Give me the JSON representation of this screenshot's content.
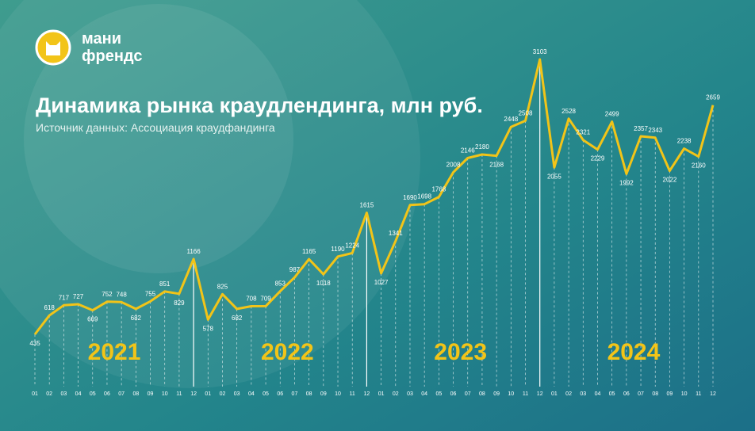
{
  "logo": {
    "line1": "мани",
    "line2": "френдс"
  },
  "chart_data": {
    "type": "line",
    "title": "Динамика рынка краудлендинга, млн руб.",
    "subtitle": "Источник данных: Ассоциация краудфандинга",
    "categories": [
      "01",
      "02",
      "03",
      "04",
      "05",
      "06",
      "07",
      "08",
      "09",
      "10",
      "11",
      "12",
      "01",
      "02",
      "03",
      "04",
      "05",
      "06",
      "07",
      "08",
      "09",
      "10",
      "11",
      "12",
      "01",
      "02",
      "03",
      "04",
      "05",
      "06",
      "07",
      "08",
      "09",
      "10",
      "11",
      "12",
      "01",
      "02",
      "03",
      "04",
      "05",
      "06",
      "07",
      "08",
      "09",
      "10",
      "11",
      "12"
    ],
    "values": [
      435,
      618,
      717,
      727,
      669,
      752,
      748,
      682,
      755,
      851,
      829,
      1166,
      578,
      825,
      682,
      708,
      709,
      853,
      987,
      1165,
      1018,
      1190,
      1224,
      1615,
      1027,
      1341,
      1690,
      1698,
      1768,
      2008,
      2146,
      2180,
      2168,
      2448,
      2508,
      3103,
      2055,
      2528,
      2321,
      2229,
      2499,
      1992,
      2357,
      2343,
      2022,
      2238,
      2160,
      2659
    ],
    "color": "#f2c418",
    "annotations": [
      "2021",
      "2022",
      "2023",
      "2024"
    ]
  }
}
